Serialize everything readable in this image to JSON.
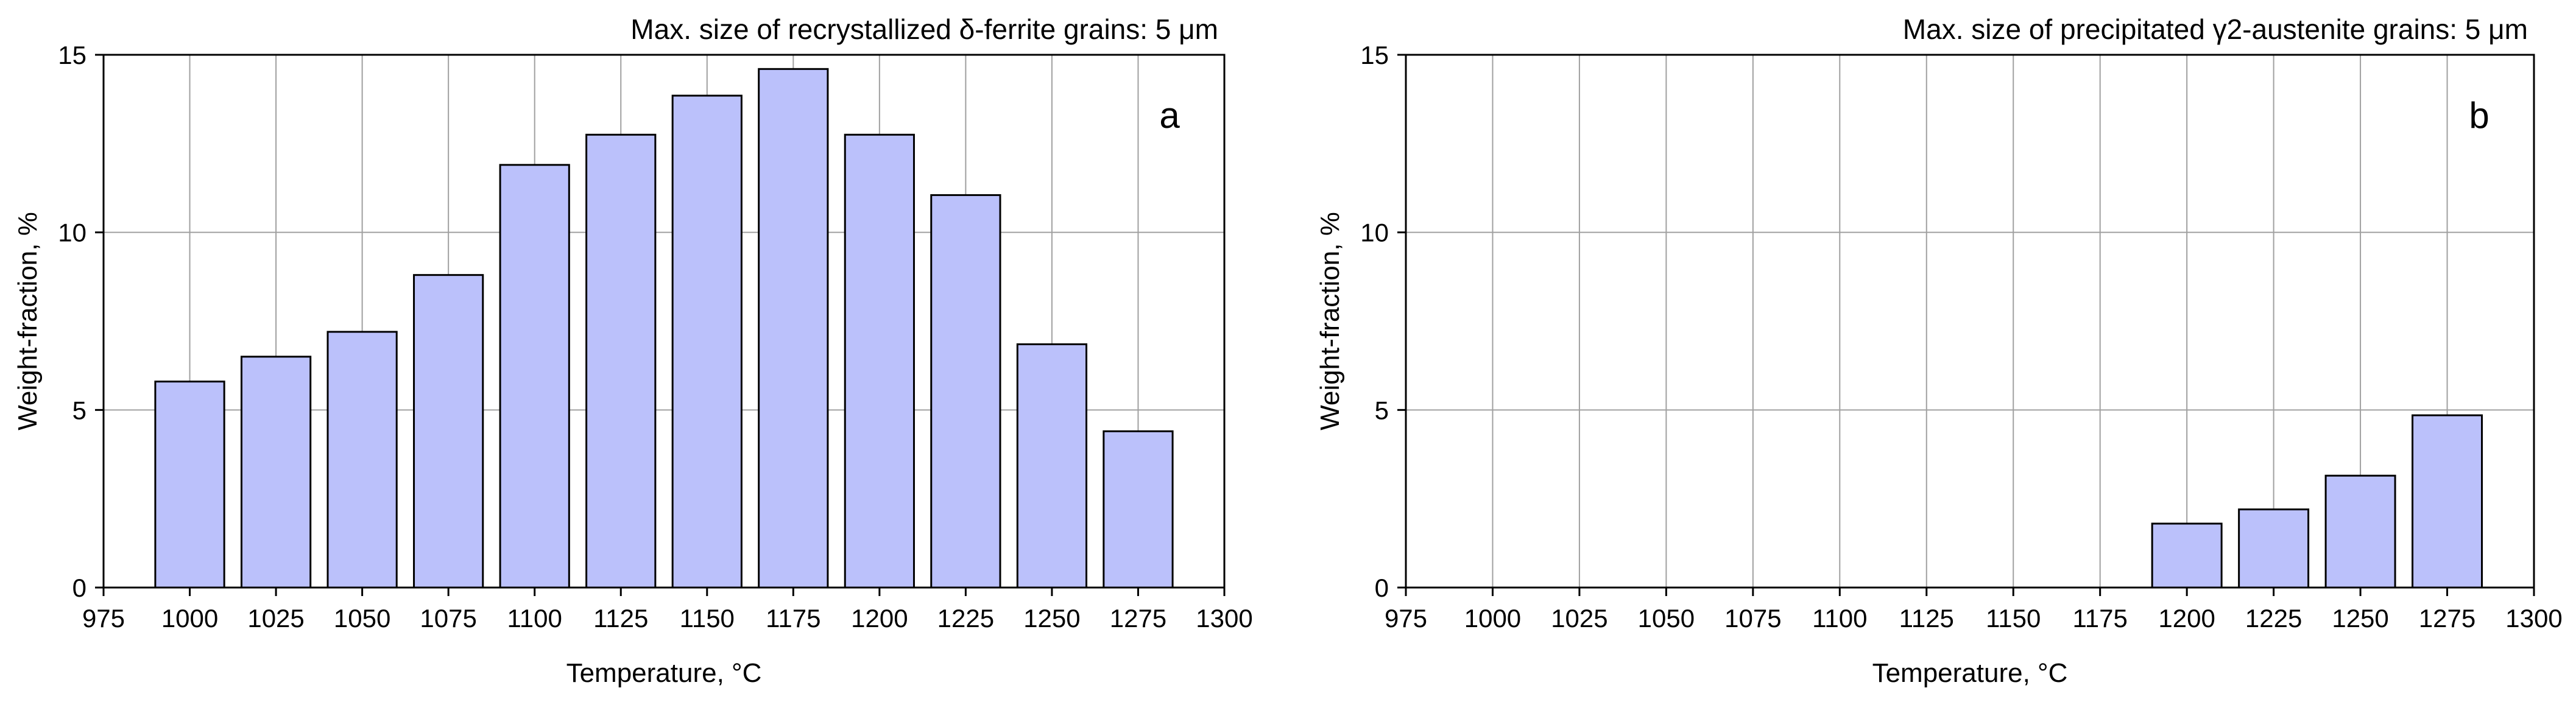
{
  "colors": {
    "bar_fill": "#bbc1fb",
    "bar_stroke": "#000000",
    "grid": "#a0a0a0"
  },
  "chart_data": [
    {
      "type": "bar",
      "panel": "a",
      "title": "Max. size of recrystallized δ-ferrite grains: 5 μm",
      "xlabel": "Temperature, °C",
      "ylabel": "Weight-fraction, %",
      "x": [
        1000,
        1025,
        1050,
        1075,
        1100,
        1125,
        1150,
        1175,
        1200,
        1225,
        1250,
        1275
      ],
      "values": [
        5.8,
        6.5,
        7.2,
        8.8,
        11.9,
        12.75,
        13.85,
        14.6,
        12.75,
        11.05,
        6.85,
        4.4
      ],
      "xlim": [
        975,
        1300
      ],
      "ylim": [
        0,
        15
      ],
      "xticks": [
        975,
        1000,
        1025,
        1050,
        1075,
        1100,
        1125,
        1150,
        1175,
        1200,
        1225,
        1250,
        1275,
        1300
      ],
      "yticks": [
        0,
        5,
        10,
        15
      ],
      "grid": true
    },
    {
      "type": "bar",
      "panel": "b",
      "title": "Max. size of precipitated γ2-austenite grains: 5 μm",
      "xlabel": "Temperature, °C",
      "ylabel": "Weight-fraction, %",
      "x": [
        1200,
        1225,
        1250,
        1275
      ],
      "values": [
        1.8,
        2.2,
        3.15,
        4.85
      ],
      "xlim": [
        975,
        1300
      ],
      "ylim": [
        0,
        15
      ],
      "xticks": [
        975,
        1000,
        1025,
        1050,
        1075,
        1100,
        1125,
        1150,
        1175,
        1200,
        1225,
        1250,
        1275,
        1300
      ],
      "yticks": [
        0,
        5,
        10,
        15
      ],
      "grid": true
    }
  ]
}
